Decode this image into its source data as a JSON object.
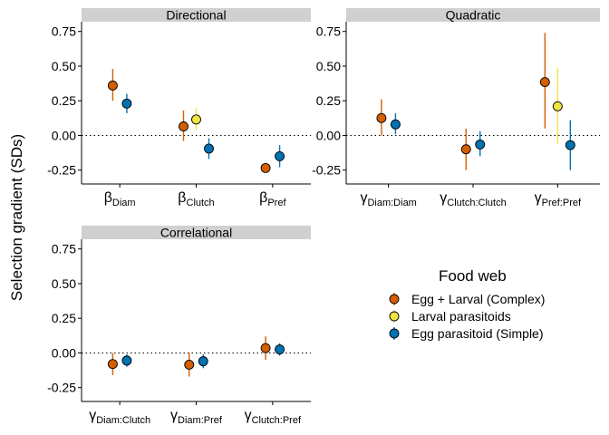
{
  "chart_data": {
    "type": "scatter",
    "ylabel": "Selection gradient (SDs)",
    "ylim": [
      -0.35,
      0.82
    ],
    "yticks": [
      -0.25,
      0,
      0.25,
      0.5,
      0.75
    ],
    "ytick_labels": [
      "-0.25",
      "0.00",
      "0.25",
      "0.50",
      "0.75"
    ],
    "reference_line": 0,
    "legend": {
      "title": "Food web",
      "entries": [
        {
          "key": "complex",
          "label": "Egg + Larval (Complex)",
          "color": "#D55E00"
        },
        {
          "key": "larval",
          "label": "Larval parasitoids",
          "color": "#F0E442"
        },
        {
          "key": "simple",
          "label": "Egg parasitoid (Simple)",
          "color": "#0072B2"
        }
      ]
    },
    "panels": [
      {
        "title": "Directional",
        "categories": [
          {
            "symbol": "β",
            "sub": "Diam"
          },
          {
            "symbol": "β",
            "sub": "Clutch"
          },
          {
            "symbol": "β",
            "sub": "Pref"
          }
        ],
        "points": [
          {
            "cat": 0,
            "series": "complex",
            "y": 0.36,
            "lo": 0.25,
            "hi": 0.48
          },
          {
            "cat": 0,
            "series": "simple",
            "y": 0.23,
            "lo": 0.16,
            "hi": 0.3
          },
          {
            "cat": 1,
            "series": "complex",
            "y": 0.065,
            "lo": -0.04,
            "hi": 0.18
          },
          {
            "cat": 1,
            "series": "larval",
            "y": 0.115,
            "lo": 0.04,
            "hi": 0.2
          },
          {
            "cat": 1,
            "series": "simple",
            "y": -0.095,
            "lo": -0.17,
            "hi": -0.02
          },
          {
            "cat": 2,
            "series": "complex",
            "y": -0.235,
            "lo": -0.26,
            "hi": -0.21
          },
          {
            "cat": 2,
            "series": "simple",
            "y": -0.15,
            "lo": -0.23,
            "hi": -0.07
          }
        ]
      },
      {
        "title": "Quadratic",
        "categories": [
          {
            "symbol": "γ",
            "sub": "Diam:Diam"
          },
          {
            "symbol": "γ",
            "sub": "Clutch:Clutch"
          },
          {
            "symbol": "γ",
            "sub": "Pref:Pref"
          }
        ],
        "points": [
          {
            "cat": 0,
            "series": "complex",
            "y": 0.125,
            "lo": 0.0,
            "hi": 0.26
          },
          {
            "cat": 0,
            "series": "simple",
            "y": 0.08,
            "lo": 0.01,
            "hi": 0.16
          },
          {
            "cat": 1,
            "series": "complex",
            "y": -0.1,
            "lo": -0.25,
            "hi": 0.05
          },
          {
            "cat": 1,
            "series": "simple",
            "y": -0.065,
            "lo": -0.15,
            "hi": 0.03
          },
          {
            "cat": 2,
            "series": "complex",
            "y": 0.385,
            "lo": 0.05,
            "hi": 0.74
          },
          {
            "cat": 2,
            "series": "larval",
            "y": 0.21,
            "lo": -0.06,
            "hi": 0.49
          },
          {
            "cat": 2,
            "series": "simple",
            "y": -0.07,
            "lo": -0.25,
            "hi": 0.11
          }
        ]
      },
      {
        "title": "Correlational",
        "categories": [
          {
            "symbol": "γ",
            "sub": "Diam:Clutch"
          },
          {
            "symbol": "γ",
            "sub": "Diam:Pref"
          },
          {
            "symbol": "γ",
            "sub": "Clutch:Pref"
          }
        ],
        "points": [
          {
            "cat": 0,
            "series": "complex",
            "y": -0.08,
            "lo": -0.16,
            "hi": 0.0
          },
          {
            "cat": 0,
            "series": "simple",
            "y": -0.055,
            "lo": -0.1,
            "hi": -0.01
          },
          {
            "cat": 1,
            "series": "complex",
            "y": -0.085,
            "lo": -0.17,
            "hi": 0.0
          },
          {
            "cat": 1,
            "series": "simple",
            "y": -0.06,
            "lo": -0.11,
            "hi": -0.01
          },
          {
            "cat": 2,
            "series": "complex",
            "y": 0.035,
            "lo": -0.05,
            "hi": 0.12
          },
          {
            "cat": 2,
            "series": "simple",
            "y": 0.025,
            "lo": -0.02,
            "hi": 0.07
          }
        ]
      }
    ]
  }
}
